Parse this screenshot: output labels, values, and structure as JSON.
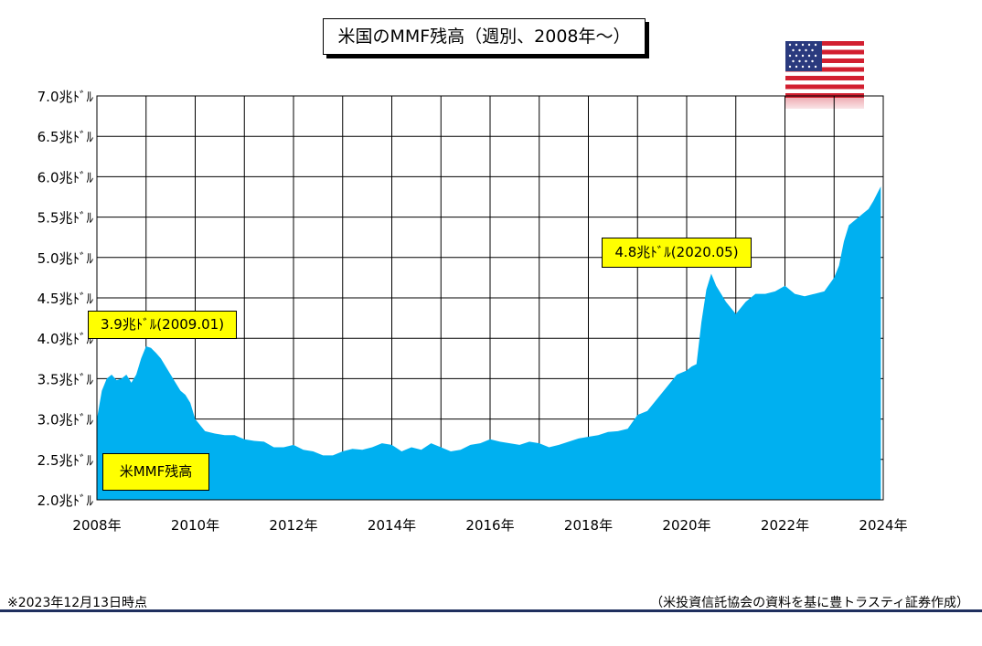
{
  "title": "米国のMMF残高（週別、2008年〜）",
  "flag_icon": "us-flag-icon",
  "footnote": "※2023年12月13日時点",
  "source": "（米投資信託協会の資料を基に豊トラスティ証券作成）",
  "colors": {
    "area": "#00b0f0",
    "callout": "#ffff00",
    "rule": "#1f2f5e"
  },
  "chart_data": {
    "type": "area",
    "series": [
      {
        "name": "米MMF残高",
        "x": [
          2008.0,
          2008.1,
          2008.2,
          2008.3,
          2008.4,
          2008.5,
          2008.6,
          2008.7,
          2008.8,
          2008.9,
          2009.0,
          2009.1,
          2009.2,
          2009.3,
          2009.4,
          2009.5,
          2009.6,
          2009.7,
          2009.8,
          2009.9,
          2010.0,
          2010.2,
          2010.4,
          2010.6,
          2010.8,
          2011.0,
          2011.2,
          2011.4,
          2011.6,
          2011.8,
          2012.0,
          2012.2,
          2012.4,
          2012.6,
          2012.8,
          2013.0,
          2013.2,
          2013.4,
          2013.6,
          2013.8,
          2014.0,
          2014.2,
          2014.4,
          2014.6,
          2014.8,
          2015.0,
          2015.2,
          2015.4,
          2015.6,
          2015.8,
          2016.0,
          2016.2,
          2016.4,
          2016.6,
          2016.8,
          2017.0,
          2017.2,
          2017.4,
          2017.6,
          2017.8,
          2018.0,
          2018.2,
          2018.4,
          2018.6,
          2018.8,
          2019.0,
          2019.2,
          2019.4,
          2019.6,
          2019.8,
          2020.0,
          2020.1,
          2020.2,
          2020.3,
          2020.4,
          2020.5,
          2020.6,
          2020.8,
          2021.0,
          2021.2,
          2021.4,
          2021.6,
          2021.8,
          2022.0,
          2022.2,
          2022.4,
          2022.6,
          2022.8,
          2023.0,
          2023.1,
          2023.2,
          2023.3,
          2023.4,
          2023.5,
          2023.6,
          2023.7,
          2023.8,
          2023.9,
          2023.95
        ],
        "y": [
          3.0,
          3.35,
          3.5,
          3.55,
          3.48,
          3.5,
          3.55,
          3.45,
          3.55,
          3.75,
          3.9,
          3.88,
          3.82,
          3.75,
          3.65,
          3.55,
          3.45,
          3.35,
          3.3,
          3.2,
          3.0,
          2.85,
          2.82,
          2.8,
          2.8,
          2.75,
          2.73,
          2.72,
          2.65,
          2.65,
          2.68,
          2.62,
          2.6,
          2.55,
          2.55,
          2.6,
          2.63,
          2.62,
          2.65,
          2.7,
          2.68,
          2.6,
          2.65,
          2.62,
          2.7,
          2.65,
          2.6,
          2.62,
          2.68,
          2.7,
          2.75,
          2.72,
          2.7,
          2.68,
          2.72,
          2.7,
          2.65,
          2.68,
          2.72,
          2.76,
          2.78,
          2.8,
          2.84,
          2.85,
          2.88,
          3.05,
          3.1,
          3.25,
          3.4,
          3.55,
          3.6,
          3.65,
          3.68,
          4.2,
          4.6,
          4.8,
          4.65,
          4.45,
          4.3,
          4.45,
          4.55,
          4.55,
          4.58,
          4.65,
          4.55,
          4.52,
          4.55,
          4.58,
          4.75,
          4.9,
          5.2,
          5.4,
          5.45,
          5.5,
          5.55,
          5.6,
          5.7,
          5.82,
          5.88
        ]
      }
    ],
    "xlim": [
      2008,
      2024
    ],
    "ylim": [
      2.0,
      7.0
    ],
    "x_ticks": [
      "2008年",
      "2010年",
      "2012年",
      "2014年",
      "2016年",
      "2018年",
      "2020年",
      "2022年",
      "2024年"
    ],
    "y_ticks": [
      "2.0兆ﾄﾞﾙ",
      "2.5兆ﾄﾞﾙ",
      "3.0兆ﾄﾞﾙ",
      "3.5兆ﾄﾞﾙ",
      "4.0兆ﾄﾞﾙ",
      "4.5兆ﾄﾞﾙ",
      "5.0兆ﾄﾞﾙ",
      "5.5兆ﾄﾞﾙ",
      "6.0兆ﾄﾞﾙ",
      "6.5兆ﾄﾞﾙ",
      "7.0兆ﾄﾞﾙ"
    ],
    "grid": true,
    "annotations": [
      {
        "text": "3.9兆ﾄﾞﾙ(2009.01)",
        "x": 2009.0,
        "y": 3.9
      },
      {
        "text": "4.8兆ﾄﾞﾙ(2020.05)",
        "x": 2020.4,
        "y": 4.8
      }
    ],
    "legend_label": "米MMF残高"
  }
}
